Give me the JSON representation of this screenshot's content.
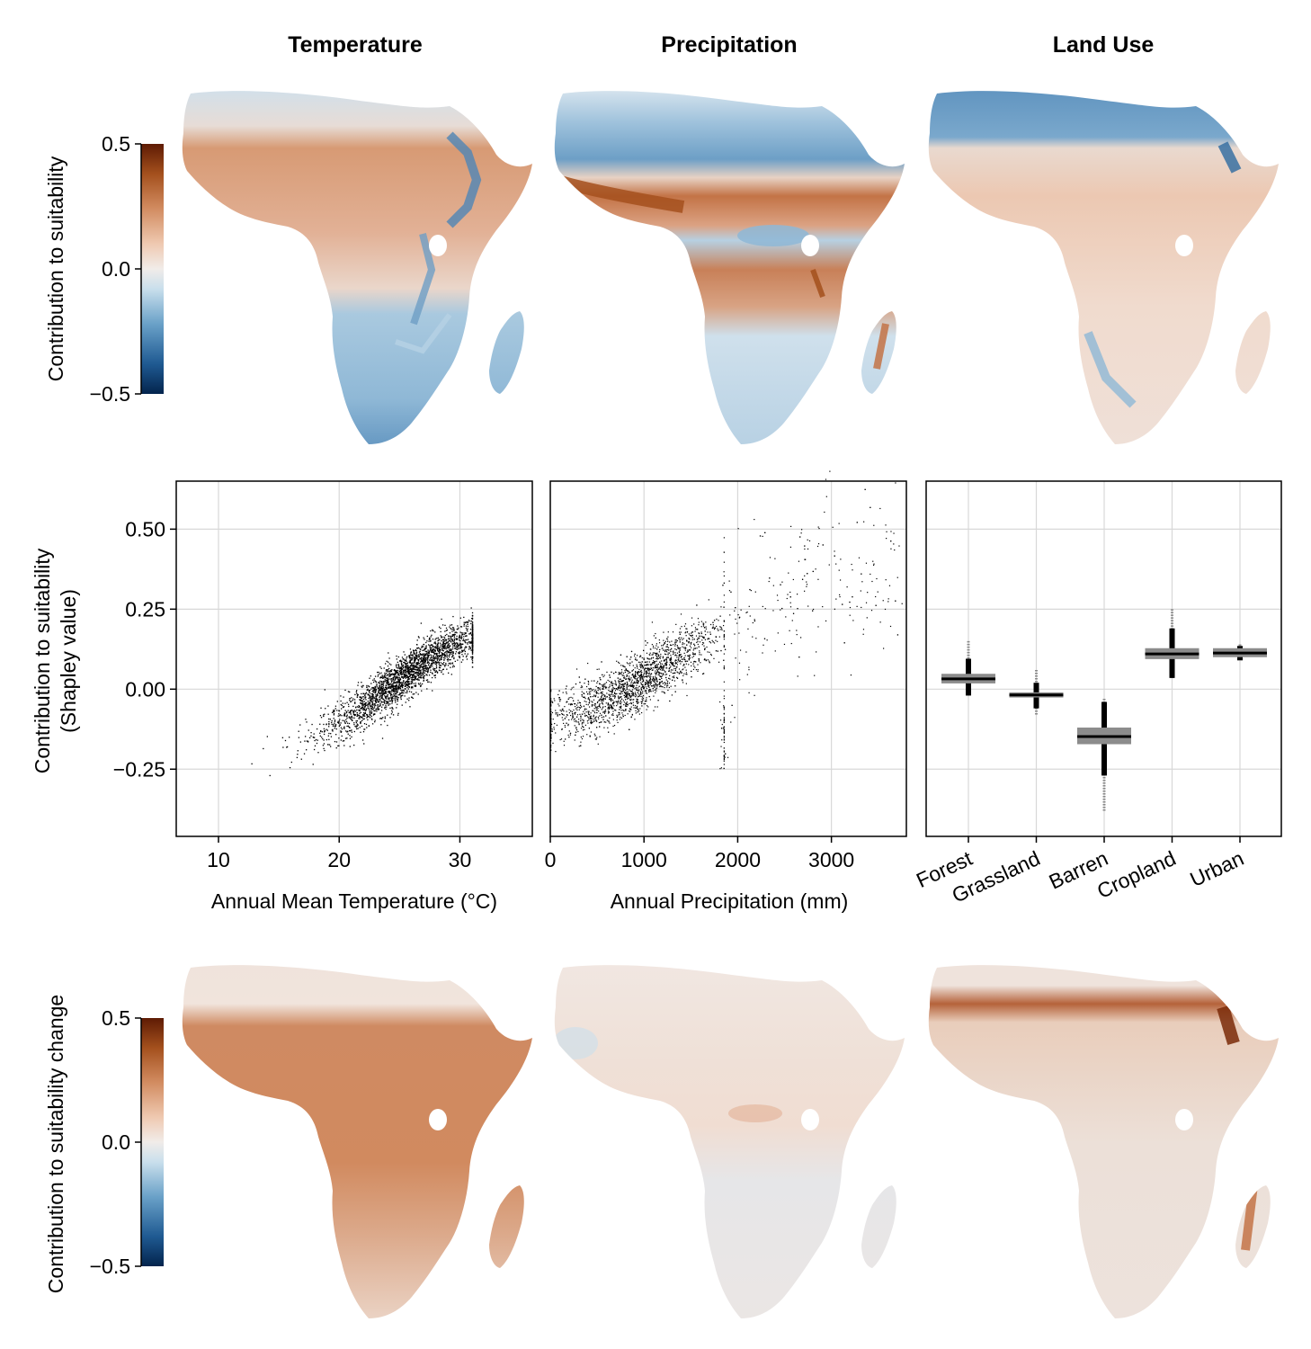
{
  "column_titles": [
    "Temperature",
    "Precipitation",
    "Land Use"
  ],
  "colorbar_top": {
    "label": "Contribution to suitability",
    "ticks": [
      "0.5",
      "0.0",
      "−0.5"
    ],
    "range": [
      -0.5,
      0.5
    ],
    "colormap": [
      "#03244d",
      "#1f5a92",
      "#6aa1c8",
      "#c9dfec",
      "#f1ece9",
      "#efc9b1",
      "#d28c61",
      "#a4501d",
      "#5e1b04"
    ]
  },
  "colorbar_bottom": {
    "label": "Contribution to suitability change",
    "ticks": [
      "0.5",
      "0.0",
      "−0.5"
    ],
    "range": [
      -0.5,
      0.5
    ]
  },
  "row2_ylabel": [
    "Contribution to suitability",
    "(Shapley value)"
  ],
  "chart_data": [
    {
      "type": "scatter",
      "panel": "temperature",
      "xlabel": "Annual Mean Temperature (°C)",
      "ylabel": "Contribution to suitability (Shapley value)",
      "xlim": [
        6.5,
        36
      ],
      "ylim": [
        -0.46,
        0.65
      ],
      "xticks": [
        10,
        20,
        30
      ],
      "yticks": [
        0.5,
        0.25,
        0.0,
        -0.25
      ],
      "ytick_labels": [
        "0.50",
        "0.25",
        "0.00",
        "−0.25"
      ],
      "grid": true,
      "trend": {
        "x": [
          8,
          14,
          20,
          24,
          27,
          29,
          30.5
        ],
        "y": [
          -0.3,
          -0.22,
          -0.1,
          0.0,
          0.09,
          0.13,
          0.16
        ]
      },
      "point_density_note_free": true
    },
    {
      "type": "scatter",
      "panel": "precipitation",
      "xlabel": "Annual Precipitation (mm)",
      "xlim": [
        0,
        3800
      ],
      "ylim": [
        -0.46,
        0.65
      ],
      "xticks": [
        0,
        1000,
        2000,
        3000
      ],
      "grid": true,
      "trend": {
        "x": [
          0,
          400,
          800,
          1200,
          1600,
          1800,
          2200,
          2800,
          3400
        ],
        "y": [
          -0.1,
          -0.06,
          0.0,
          0.07,
          0.15,
          0.18,
          0.25,
          0.33,
          0.38
        ]
      }
    },
    {
      "type": "box",
      "panel": "land_use",
      "categories": [
        "Forest",
        "Grassland",
        "Barren",
        "Cropland",
        "Urban"
      ],
      "ylim": [
        -0.46,
        0.65
      ],
      "median": [
        0.032,
        -0.018,
        -0.148,
        0.11,
        0.113
      ],
      "q1": [
        0.018,
        -0.026,
        -0.172,
        0.094,
        0.1
      ],
      "q3": [
        0.048,
        -0.01,
        -0.12,
        0.128,
        0.128
      ],
      "whisker_low": [
        -0.02,
        -0.06,
        -0.27,
        0.035,
        0.09
      ],
      "whisker_high": [
        0.095,
        0.02,
        -0.04,
        0.19,
        0.135
      ],
      "outlier_low": [
        -0.02,
        -0.08,
        -0.38,
        0.035,
        0.09
      ],
      "outlier_high": [
        0.15,
        0.06,
        -0.03,
        0.25,
        0.14
      ],
      "grid": true
    }
  ]
}
